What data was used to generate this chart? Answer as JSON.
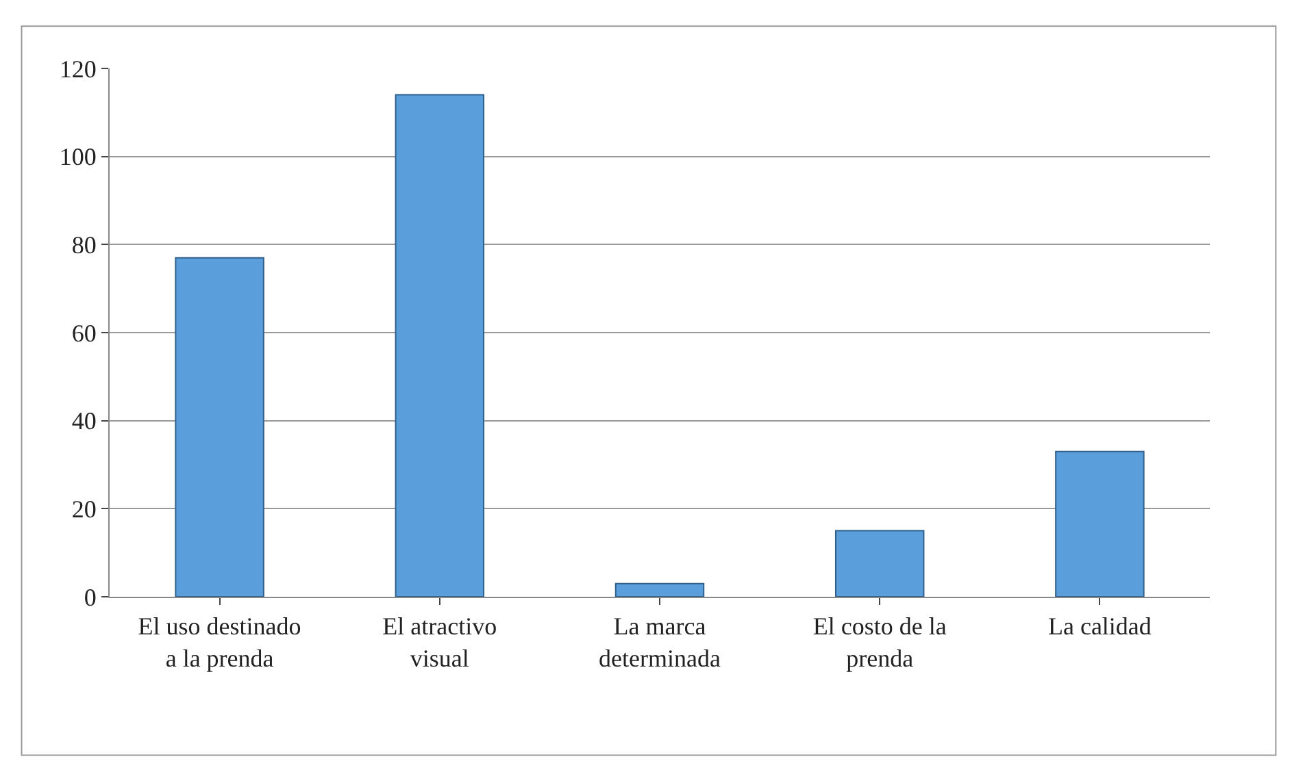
{
  "chart_data": {
    "type": "bar",
    "categories": [
      "El uso destinado a la prenda",
      "El atractivo visual",
      "La marca determinada",
      "El costo de la prenda",
      "La calidad"
    ],
    "values": [
      77,
      114,
      3,
      15,
      33
    ],
    "color": "#5a9fdc",
    "ylim": [
      0,
      120
    ],
    "yticks": [
      0,
      20,
      40,
      60,
      80,
      100,
      120
    ],
    "grid": "y",
    "legend": false
  }
}
